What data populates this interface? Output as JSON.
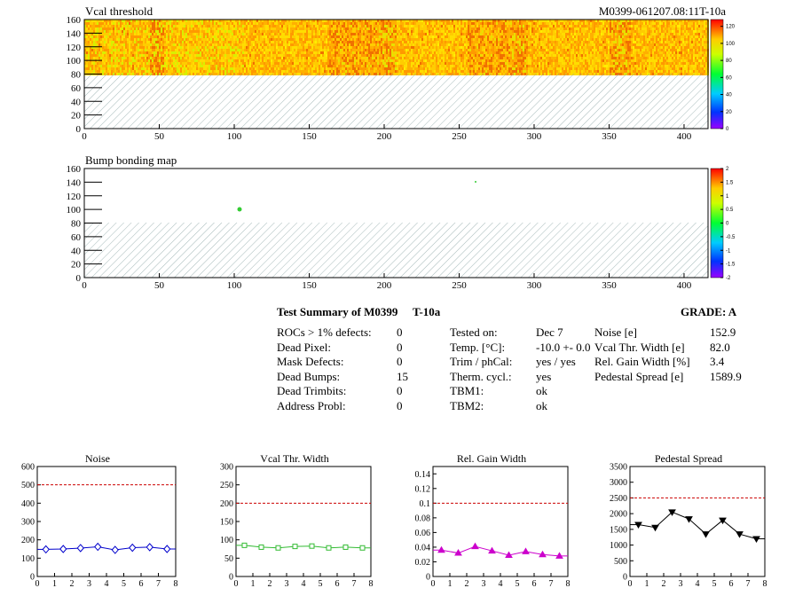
{
  "maps": [
    {
      "title": "Vcal threshold",
      "id_label": "M0399-061207.08:11T-10a",
      "x_ticks": [
        "0",
        "50",
        "100",
        "150",
        "200",
        "250",
        "300",
        "350",
        "400"
      ],
      "y_ticks": [
        "0",
        "20",
        "40",
        "60",
        "80",
        "100",
        "120",
        "140",
        "160"
      ],
      "palette_ticks": [
        "120",
        "100",
        "80",
        "60",
        "40",
        "20",
        "0"
      ]
    },
    {
      "title": "Bump bonding map",
      "x_ticks": [
        "0",
        "50",
        "100",
        "150",
        "200",
        "250",
        "300",
        "350",
        "400"
      ],
      "y_ticks": [
        "0",
        "20",
        "40",
        "60",
        "80",
        "100",
        "120",
        "140",
        "160"
      ],
      "palette_ticks": [
        "2",
        "1.5",
        "1",
        "0.5",
        "0",
        "-0.5",
        "-1",
        "-1.5",
        "-2"
      ]
    }
  ],
  "summary": {
    "title": "Test Summary of M0399",
    "temp_tag": "T-10a",
    "grade": "GRADE:  A",
    "col1": [
      {
        "label": "ROCs > 1% defects:",
        "value": "0"
      },
      {
        "label": "Dead Pixel:",
        "value": "0"
      },
      {
        "label": "Mask Defects:",
        "value": "0"
      },
      {
        "label": "Dead Bumps:",
        "value": "15"
      },
      {
        "label": "Dead Trimbits:",
        "value": "0"
      },
      {
        "label": "Address Probl:",
        "value": "0"
      }
    ],
    "col2": [
      {
        "label": "Tested on:",
        "value": "Dec 7"
      },
      {
        "label": "Temp. [°C]:",
        "value": "-10.0 +- 0.0"
      },
      {
        "label": "Trim / phCal:",
        "value": "yes / yes"
      },
      {
        "label": "Therm. cycl.:",
        "value": "yes"
      },
      {
        "label": "TBM1:",
        "value": "ok"
      },
      {
        "label": "TBM2:",
        "value": "ok"
      }
    ],
    "col3": [
      {
        "label": "Noise [e]",
        "value": "152.9"
      },
      {
        "label": "Vcal Thr. Width [e]",
        "value": "82.0"
      },
      {
        "label": "Rel. Gain Width [%]",
        "value": "3.4"
      },
      {
        "label": "Pedestal Spread [e]",
        "value": "1589.9"
      }
    ]
  },
  "chart_data": [
    {
      "type": "line",
      "title": "Noise",
      "x": [
        0.5,
        1.5,
        2.5,
        3.5,
        4.5,
        5.5,
        6.5,
        7.5
      ],
      "values": [
        148,
        150,
        155,
        162,
        145,
        157,
        160,
        150
      ],
      "xlim": [
        0,
        8
      ],
      "ylim": [
        0,
        600
      ],
      "x_ticks": [
        "0",
        "1",
        "2",
        "3",
        "4",
        "5",
        "6",
        "7",
        "8"
      ],
      "y_ticks": [
        "0",
        "100",
        "200",
        "300",
        "400",
        "500",
        "600"
      ],
      "limit": 500,
      "color": "#0000cc",
      "marker": "diamond"
    },
    {
      "type": "line",
      "title": "Vcal Thr. Width",
      "x": [
        0.5,
        1.5,
        2.5,
        3.5,
        4.5,
        5.5,
        6.5,
        7.5
      ],
      "values": [
        85,
        80,
        78,
        82,
        83,
        78,
        80,
        78
      ],
      "xlim": [
        0,
        8
      ],
      "ylim": [
        0,
        300
      ],
      "x_ticks": [
        "0",
        "1",
        "2",
        "3",
        "4",
        "5",
        "6",
        "7",
        "8"
      ],
      "y_ticks": [
        "0",
        "50",
        "100",
        "150",
        "200",
        "250",
        "300"
      ],
      "limit": 200,
      "color": "#33bb33",
      "marker": "square"
    },
    {
      "type": "line",
      "title": "Rel. Gain Width",
      "x": [
        0.5,
        1.5,
        2.5,
        3.5,
        4.5,
        5.5,
        6.5,
        7.5
      ],
      "values": [
        0.036,
        0.032,
        0.041,
        0.035,
        0.029,
        0.034,
        0.03,
        0.028
      ],
      "xlim": [
        0,
        8
      ],
      "ylim": [
        0,
        0.15
      ],
      "x_ticks": [
        "0",
        "1",
        "2",
        "3",
        "4",
        "5",
        "6",
        "7",
        "8"
      ],
      "y_ticks": [
        "0",
        "0.02",
        "0.04",
        "0.06",
        "0.08",
        "0.1",
        "0.12",
        "0.14"
      ],
      "limit": 0.1,
      "color": "#cc00cc",
      "marker": "triangle-up"
    },
    {
      "type": "line",
      "title": "Pedestal Spread",
      "x": [
        0.5,
        1.5,
        2.5,
        3.5,
        4.5,
        5.5,
        6.5,
        7.5
      ],
      "values": [
        1650,
        1560,
        2050,
        1830,
        1350,
        1790,
        1350,
        1200
      ],
      "xlim": [
        0,
        8
      ],
      "ylim": [
        0,
        3500
      ],
      "x_ticks": [
        "0",
        "1",
        "2",
        "3",
        "4",
        "5",
        "6",
        "7",
        "8"
      ],
      "y_ticks": [
        "0",
        "500",
        "1000",
        "1500",
        "2000",
        "2500",
        "3000",
        "3500"
      ],
      "limit": 2500,
      "color": "#000000",
      "marker": "triangle-down"
    }
  ]
}
